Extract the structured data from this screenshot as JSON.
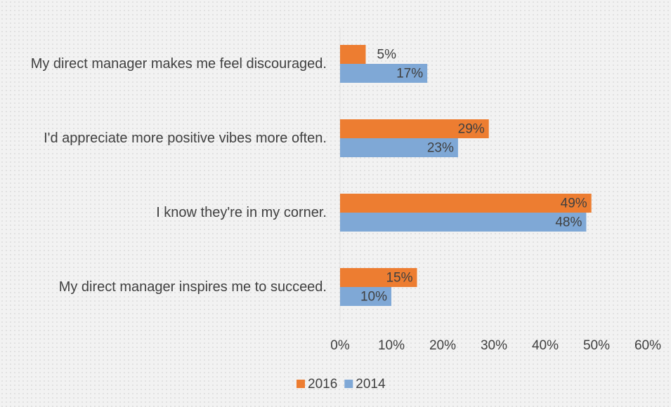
{
  "chart_data": {
    "type": "bar",
    "orientation": "horizontal",
    "categories": [
      "My direct manager makes me feel discouraged.",
      "I'd appreciate more positive vibes more often.",
      "I know they're in my corner.",
      "My direct manager inspires me to succeed."
    ],
    "series": [
      {
        "name": "2016",
        "color": "#ed7d31",
        "values": [
          5,
          29,
          49,
          15
        ],
        "value_labels": [
          "5%",
          "29%",
          "49%",
          "15%"
        ]
      },
      {
        "name": "2014",
        "color": "#7fa8d6",
        "values": [
          17,
          23,
          48,
          10
        ],
        "value_labels": [
          "17%",
          "23%",
          "48%",
          "10%"
        ]
      }
    ],
    "xlim": [
      0,
      60
    ],
    "xticks": [
      {
        "value": 0,
        "label": "0%"
      },
      {
        "value": 10,
        "label": "10%"
      },
      {
        "value": 20,
        "label": "20%"
      },
      {
        "value": 30,
        "label": "30%"
      },
      {
        "value": 40,
        "label": "40%"
      },
      {
        "value": 50,
        "label": "50%"
      },
      {
        "value": 60,
        "label": "60%"
      }
    ],
    "grid": false,
    "legend": "bottom"
  }
}
